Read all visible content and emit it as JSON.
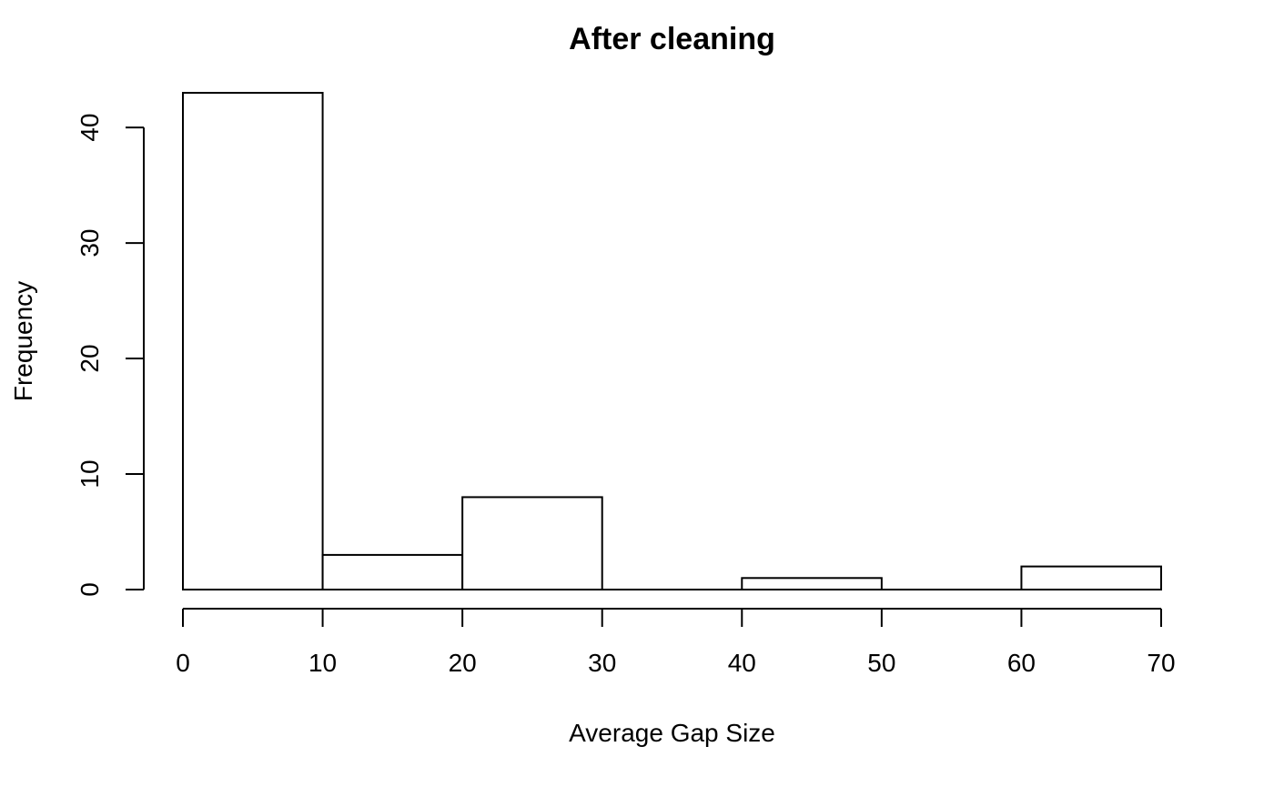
{
  "chart_data": {
    "type": "bar",
    "title": "After cleaning",
    "xlabel": "Average Gap Size",
    "ylabel": "Frequency",
    "bins": [
      {
        "start": 0,
        "end": 10,
        "count": 43
      },
      {
        "start": 10,
        "end": 20,
        "count": 3
      },
      {
        "start": 20,
        "end": 30,
        "count": 8
      },
      {
        "start": 30,
        "end": 40,
        "count": 0
      },
      {
        "start": 40,
        "end": 50,
        "count": 1
      },
      {
        "start": 50,
        "end": 60,
        "count": 0
      },
      {
        "start": 60,
        "end": 70,
        "count": 2
      }
    ],
    "xlim": [
      0,
      70
    ],
    "ylim": [
      0,
      43
    ],
    "x_ticks": [
      0,
      10,
      20,
      30,
      40,
      50,
      60,
      70
    ],
    "y_ticks": [
      0,
      10,
      20,
      30,
      40
    ],
    "grid": false,
    "legend": "none",
    "colors": {
      "bar_fill": "#ffffff",
      "bar_stroke": "#000000"
    }
  }
}
